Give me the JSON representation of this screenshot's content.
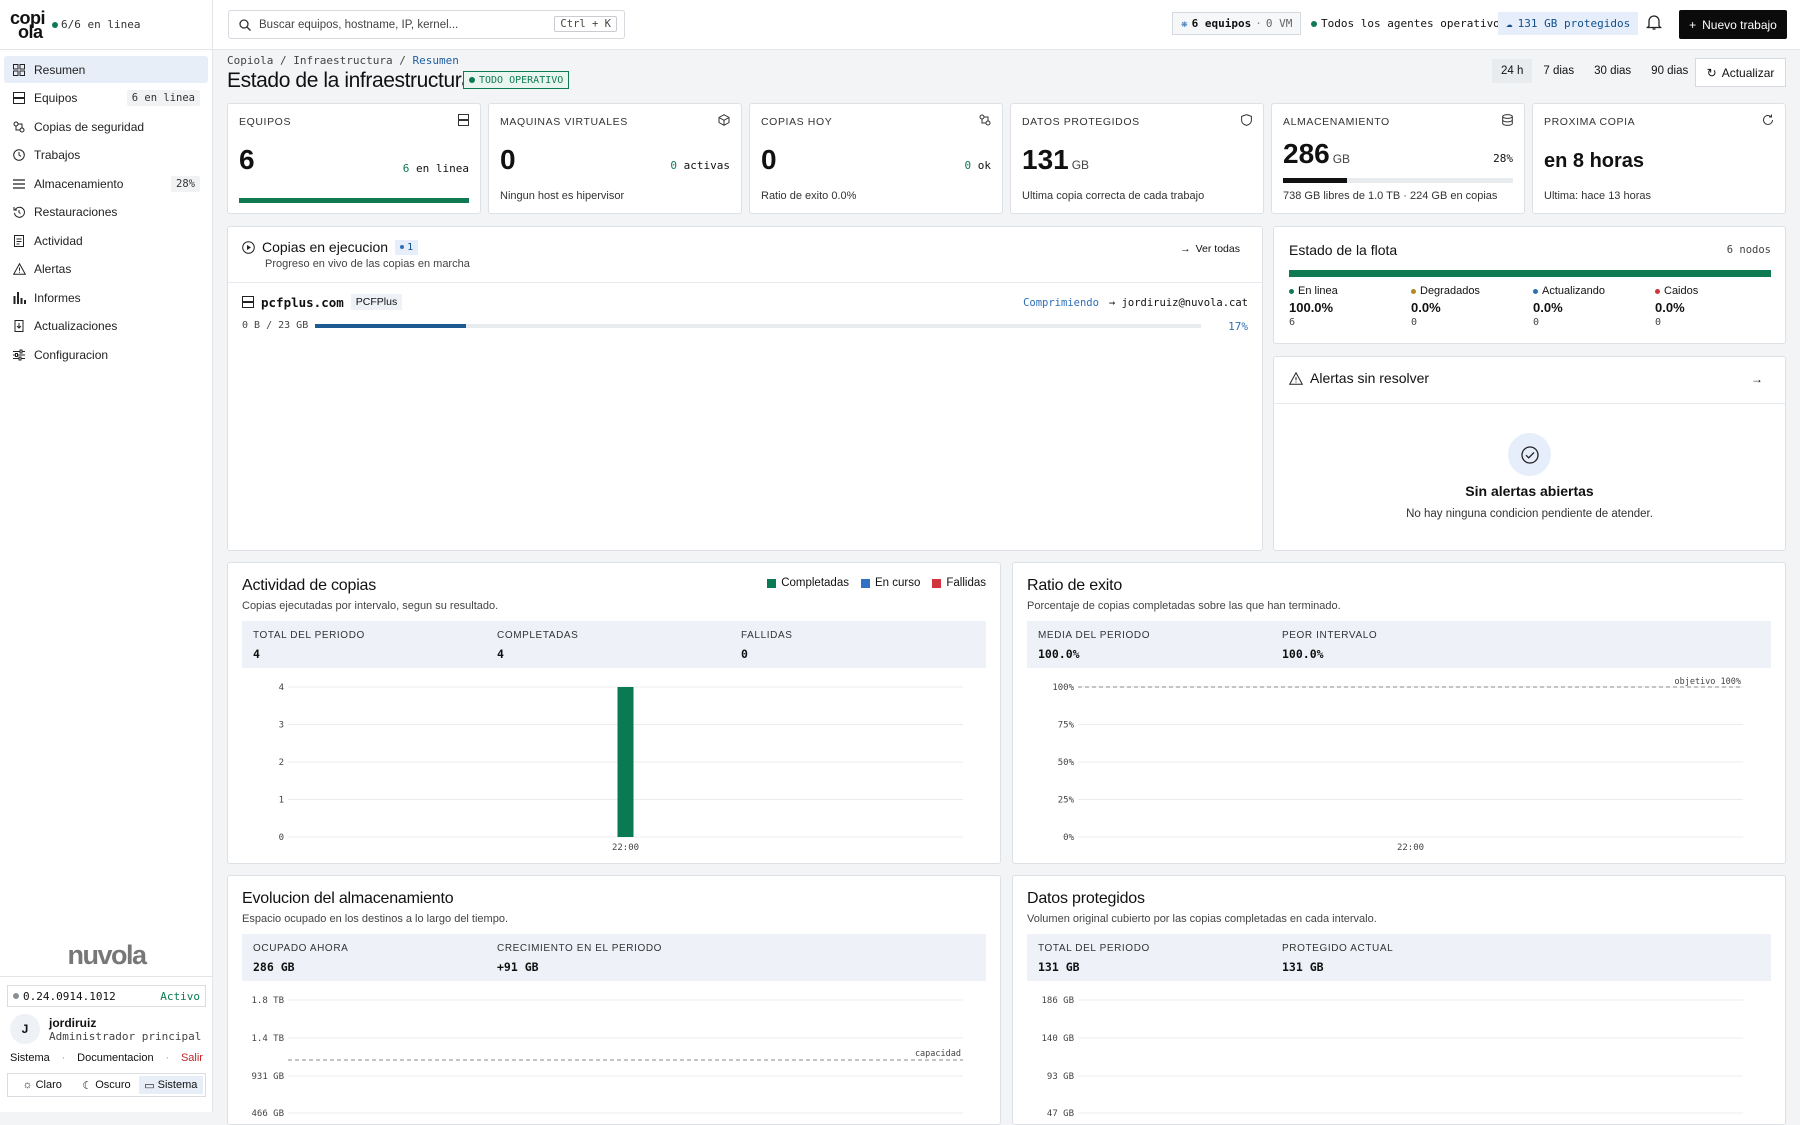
{
  "sidebar": {
    "logo_top": "copi",
    "logo_bottom": "ola",
    "online": "6/6 en linea",
    "items": [
      {
        "label": "Resumen",
        "badge": ""
      },
      {
        "label": "Equipos",
        "badge": "6 en linea"
      },
      {
        "label": "Copias de seguridad",
        "badge": ""
      },
      {
        "label": "Trabajos",
        "badge": ""
      },
      {
        "label": "Almacenamiento",
        "badge": "28%"
      },
      {
        "label": "Restauraciones",
        "badge": ""
      },
      {
        "label": "Actividad",
        "badge": ""
      },
      {
        "label": "Alertas",
        "badge": ""
      },
      {
        "label": "Informes",
        "badge": ""
      },
      {
        "label": "Actualizaciones",
        "badge": ""
      },
      {
        "label": "Configuracion",
        "badge": ""
      }
    ],
    "brand": "nuvola",
    "version": "0.24.0914.1012",
    "version_status": "Activo",
    "user_initial": "J",
    "user_name": "jordiruiz",
    "user_role": "Administrador principal",
    "links": {
      "sistema": "Sistema",
      "docs": "Documentacion",
      "salir": "Salir"
    },
    "themes": {
      "light": "Claro",
      "dark": "Oscuro",
      "system": "Sistema"
    }
  },
  "topbar": {
    "search_placeholder": "Buscar equipos, hostname, IP, kernel...",
    "shortcut": "Ctrl + K",
    "equipos": "6 equipos",
    "vm": "0 VM",
    "agents": "Todos los agentes operativos",
    "protected": "131 GB protegidos",
    "new_job": "Nuevo trabajo"
  },
  "header": {
    "breadcrumb": [
      "Copiola",
      "Infraestructura",
      "Resumen"
    ],
    "title": "Estado de la infraestructura",
    "status": "TODO OPERATIVO",
    "ranges": [
      "24 h",
      "7 dias",
      "30 dias",
      "90 dias"
    ],
    "refresh": "Actualizar"
  },
  "kpis": {
    "equipos": {
      "label": "EQUIPOS",
      "value": "6",
      "side_num": "6",
      "side_text": "en linea",
      "fill": 1.0
    },
    "vms": {
      "label": "MAQUINAS VIRTUALES",
      "value": "0",
      "side_num": "0",
      "side_text": "activas",
      "sub": "Ningun host es hipervisor"
    },
    "copias": {
      "label": "COPIAS HOY",
      "value": "0",
      "side_num": "0",
      "side_text": "ok",
      "sub": "Ratio de exito 0.0%"
    },
    "datos": {
      "label": "DATOS PROTEGIDOS",
      "value": "131",
      "unit": "GB",
      "sub": "Ultima copia correcta de cada trabajo"
    },
    "almacen": {
      "label": "ALMACENAMIENTO",
      "value": "286",
      "unit": "GB",
      "pct": "28%",
      "fill": 0.28,
      "sub": "738 GB libres de 1.0 TB · 224 GB en copias"
    },
    "proxima": {
      "label": "PROXIMA COPIA",
      "value": "en 8 horas",
      "sub": "Ultima: hace 13 horas"
    }
  },
  "running": {
    "title": "Copias en ejecucion",
    "count": "1",
    "subtitle": "Progreso en vivo de las copias en marcha",
    "link": "Ver todas",
    "job": {
      "host": "pcfplus.com",
      "tag": "PCFPlus",
      "status": "Comprimiendo",
      "dest": "→ jordiruiz@nuvola.cat",
      "size": "0 B / 23 GB",
      "pct": "17%",
      "fill": 0.17
    }
  },
  "fleet": {
    "title": "Estado de la flota",
    "nodes": "6 nodos",
    "states": [
      {
        "label": "En linea",
        "pct": "100.0%",
        "count": "6",
        "color": "#0f7a52"
      },
      {
        "label": "Degradados",
        "pct": "0.0%",
        "count": "0",
        "color": "#b08a1e"
      },
      {
        "label": "Actualizando",
        "pct": "0.0%",
        "count": "0",
        "color": "#2f6fb6"
      },
      {
        "label": "Caidos",
        "pct": "0.0%",
        "count": "0",
        "color": "#d1343c"
      }
    ]
  },
  "alerts": {
    "title": "Alertas sin resolver",
    "empty_title": "Sin alertas abiertas",
    "empty_text": "No hay ninguna condicion pendiente de atender."
  },
  "activity": {
    "title": "Actividad de copias",
    "subtitle": "Copias ejecutadas por intervalo, segun su resultado.",
    "legend": [
      {
        "label": "Completadas",
        "color": "#0a7a52"
      },
      {
        "label": "En curso",
        "color": "#2f72c4"
      },
      {
        "label": "Fallidas",
        "color": "#d1343c"
      }
    ],
    "stats": [
      {
        "label": "TOTAL DEL PERIODO",
        "value": "4"
      },
      {
        "label": "COMPLETADAS",
        "value": "4"
      },
      {
        "label": "FALLIDAS",
        "value": "0"
      }
    ]
  },
  "ratio": {
    "title": "Ratio de exito",
    "subtitle": "Porcentaje de copias completadas sobre las que han terminado.",
    "stats": [
      {
        "label": "MEDIA DEL PERIODO",
        "value": "100.0%"
      },
      {
        "label": "PEOR INTERVALO",
        "value": "100.0%"
      }
    ],
    "target_label": "objetivo 100%"
  },
  "storage": {
    "title": "Evolucion del almacenamiento",
    "subtitle": "Espacio ocupado en los destinos a lo largo del tiempo.",
    "stats": [
      {
        "label": "OCUPADO AHORA",
        "value": "286 GB"
      },
      {
        "label": "CRECIMIENTO EN EL PERIODO",
        "value": "+91 GB"
      }
    ],
    "capacity_label": "capacidad"
  },
  "protected": {
    "title": "Datos protegidos",
    "subtitle": "Volumen original cubierto por las copias completadas en cada intervalo.",
    "stats": [
      {
        "label": "TOTAL DEL PERIODO",
        "value": "131 GB"
      },
      {
        "label": "PROTEGIDO ACTUAL",
        "value": "131 GB"
      }
    ]
  },
  "chart_data": [
    {
      "type": "bar",
      "title": "Actividad de copias",
      "categories": [
        "22:00"
      ],
      "series": [
        {
          "name": "Completadas",
          "values": [
            4
          ]
        },
        {
          "name": "En curso",
          "values": [
            0
          ]
        },
        {
          "name": "Fallidas",
          "values": [
            0
          ]
        }
      ],
      "yticks": [
        "0",
        "1",
        "2",
        "3",
        "4"
      ],
      "ylim": [
        0,
        4
      ],
      "grid": true
    },
    {
      "type": "line",
      "title": "Ratio de exito",
      "categories": [
        "22:00"
      ],
      "yticks": [
        "0%",
        "25%",
        "50%",
        "75%",
        "100%"
      ],
      "ylim": [
        0,
        100
      ],
      "target": 100,
      "grid": true
    },
    {
      "type": "area",
      "title": "Evolucion del almacenamiento",
      "yticks": [
        "466 GB",
        "931 GB",
        "1.4 TB",
        "1.8 TB"
      ],
      "capacity": "1.0 TB",
      "grid": true
    },
    {
      "type": "bar",
      "title": "Datos protegidos",
      "yticks": [
        "47 GB",
        "93 GB",
        "140 GB",
        "186 GB"
      ],
      "grid": true
    }
  ]
}
